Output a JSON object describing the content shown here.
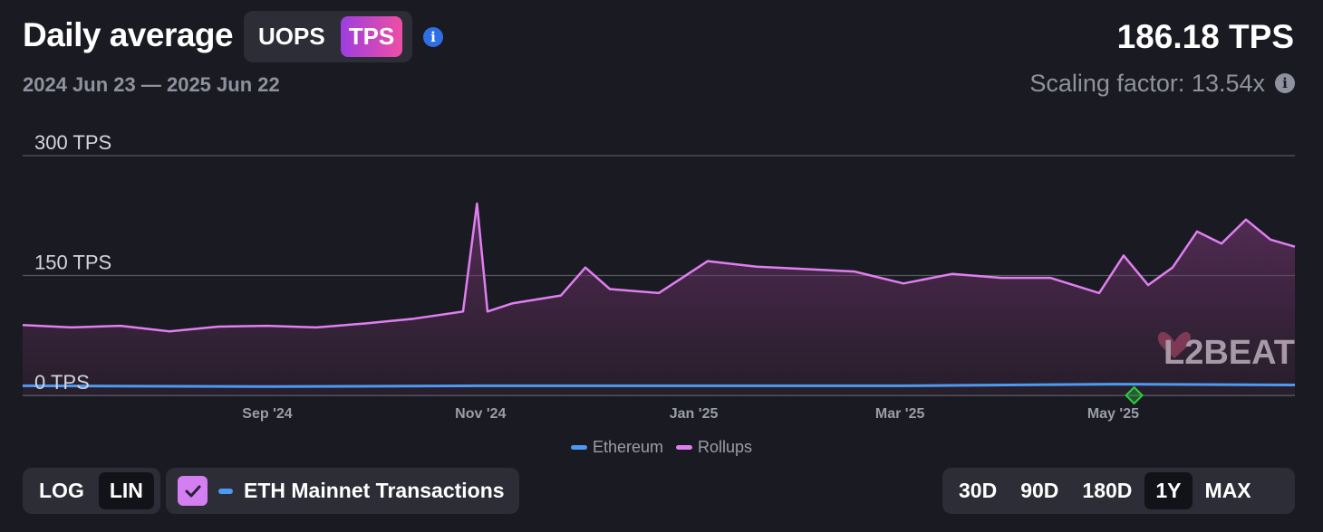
{
  "header": {
    "title": "Daily average",
    "metric_options": [
      "UOPS",
      "TPS"
    ],
    "metric_selected": "TPS",
    "date_range": "2024 Jun 23 — 2025 Jun 22",
    "current_value": "186.18 TPS",
    "scaling_factor": "Scaling factor: 13.54x"
  },
  "watermark": {
    "text": "L2BEAT"
  },
  "controls": {
    "scale_options": [
      "LOG",
      "LIN"
    ],
    "scale_selected": "LIN",
    "eth_mainnet_label": "ETH Mainnet Transactions",
    "eth_mainnet_checked": true,
    "range_options": [
      "30D",
      "90D",
      "180D",
      "1Y",
      "MAX"
    ],
    "range_selected": "1Y"
  },
  "colors": {
    "rollups": "#e07ff0",
    "ethereum": "#4d9af2",
    "accent_gradient_start": "#9d3ee0",
    "accent_gradient_end": "#ef4ea4",
    "background": "#1a1b22"
  },
  "icons": [
    "info-icon",
    "checkmark-icon",
    "green-diamond-marker-icon"
  ],
  "chart_data": {
    "type": "area",
    "x_start": "2024-06-23",
    "x_end": "2025-06-22",
    "x_tick_labels": [
      "Sep '24",
      "Nov '24",
      "Jan '25",
      "Mar '25",
      "May '25"
    ],
    "x_tick_dates": [
      "2024-09-01",
      "2024-11-01",
      "2025-01-01",
      "2025-03-01",
      "2025-05-01"
    ],
    "y_tick_labels": [
      "0 TPS",
      "150 TPS",
      "300 TPS"
    ],
    "y_tick_values": [
      0,
      150,
      300
    ],
    "ylim": [
      0,
      300
    ],
    "legend_position": "bottom",
    "grid": true,
    "series": [
      {
        "name": "Rollups",
        "x": [
          "2024-06-23",
          "2024-07-07",
          "2024-07-21",
          "2024-08-04",
          "2024-08-18",
          "2024-09-01",
          "2024-09-15",
          "2024-09-29",
          "2024-10-13",
          "2024-10-27",
          "2024-10-31",
          "2024-11-03",
          "2024-11-10",
          "2024-11-24",
          "2024-12-01",
          "2024-12-08",
          "2024-12-22",
          "2024-12-29",
          "2025-01-05",
          "2025-01-19",
          "2025-02-02",
          "2025-02-16",
          "2025-03-02",
          "2025-03-16",
          "2025-03-30",
          "2025-04-13",
          "2025-04-27",
          "2025-05-04",
          "2025-05-11",
          "2025-05-18",
          "2025-05-25",
          "2025-06-01",
          "2025-06-08",
          "2025-06-15",
          "2025-06-22"
        ],
        "values": [
          88,
          85,
          87,
          80,
          86,
          87,
          85,
          90,
          96,
          105,
          240,
          105,
          115,
          125,
          160,
          133,
          128,
          148,
          168,
          161,
          158,
          155,
          140,
          152,
          147,
          147,
          128,
          175,
          138,
          160,
          205,
          190,
          220,
          195,
          186
        ]
      },
      {
        "name": "Ethereum",
        "x": [
          "2024-06-23",
          "2024-09-01",
          "2024-11-01",
          "2025-01-01",
          "2025-03-01",
          "2025-05-01",
          "2025-06-22"
        ],
        "values": [
          12,
          11,
          12,
          12,
          12,
          14,
          13
        ]
      }
    ],
    "markers": [
      {
        "date": "2025-05-07",
        "value": 0,
        "type": "diamond",
        "color": "#2ecc40"
      }
    ]
  }
}
